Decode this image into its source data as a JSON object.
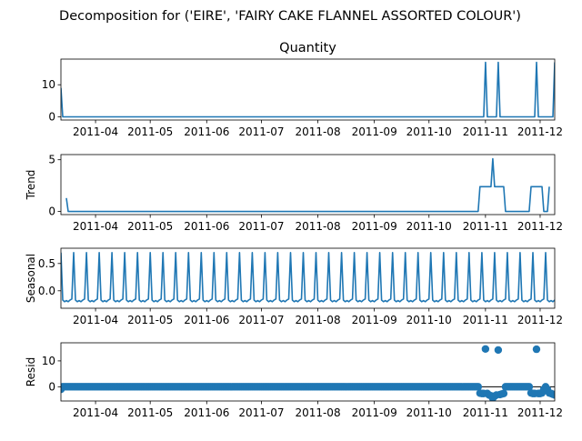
{
  "figure": {
    "suptitle": "Decomposition for ('EIRE', 'FAIRY CAKE FLANNEL ASSORTED COLOUR')"
  },
  "x_tick_labels": [
    "2011-04",
    "2011-05",
    "2011-06",
    "2011-07",
    "2011-08",
    "2011-09",
    "2011-10",
    "2011-11",
    "2011-12"
  ],
  "colors": {
    "series": "#1f77b4",
    "axis": "#000000",
    "zero_line": "#000000"
  },
  "chart_data": [
    {
      "type": "line",
      "title": "Quantity",
      "ylabel": "",
      "x_range": [
        "2011-03-13",
        "2011-12-09"
      ],
      "ylim": [
        -1,
        18
      ],
      "yticks": [
        0,
        10
      ],
      "ytick_labels": [
        "0",
        "10"
      ],
      "baseline": 0,
      "points": [
        [
          "2011-03-13",
          9
        ],
        [
          "2011-03-14",
          0
        ],
        [
          "2011-10-31",
          0
        ],
        [
          "2011-11-01",
          17
        ],
        [
          "2011-11-02",
          0
        ],
        [
          "2011-11-07",
          0
        ],
        [
          "2011-11-08",
          17
        ],
        [
          "2011-11-09",
          0
        ],
        [
          "2011-11-28",
          0
        ],
        [
          "2011-11-29",
          17
        ],
        [
          "2011-11-30",
          0
        ],
        [
          "2011-12-08",
          0
        ],
        [
          "2011-12-09",
          17
        ]
      ]
    },
    {
      "type": "line",
      "title": "",
      "ylabel": "Trend",
      "x_range": [
        "2011-03-13",
        "2011-12-09"
      ],
      "ylim": [
        -0.3,
        5.5
      ],
      "yticks": [
        0,
        5
      ],
      "ytick_labels": [
        "0",
        "5"
      ],
      "points": [
        [
          "2011-03-16",
          1.3
        ],
        [
          "2011-03-17",
          0
        ],
        [
          "2011-10-28",
          0
        ],
        [
          "2011-10-29",
          2.4
        ],
        [
          "2011-11-04",
          2.4
        ],
        [
          "2011-11-05",
          5.1
        ],
        [
          "2011-11-06",
          2.4
        ],
        [
          "2011-11-11",
          2.4
        ],
        [
          "2011-11-12",
          0
        ],
        [
          "2011-11-25",
          0
        ],
        [
          "2011-11-26",
          2.4
        ],
        [
          "2011-12-02",
          2.4
        ],
        [
          "2011-12-03",
          0
        ],
        [
          "2011-12-05",
          0
        ],
        [
          "2011-12-06",
          2.4
        ]
      ]
    },
    {
      "type": "line",
      "title": "",
      "ylabel": "Seasonal",
      "x_range": [
        "2011-03-13",
        "2011-12-09"
      ],
      "ylim": [
        -0.32,
        0.78
      ],
      "yticks": [
        0.0,
        0.5
      ],
      "ytick_labels": [
        "0.0",
        "0.5"
      ],
      "period_days": 7,
      "first_day": "2011-03-13",
      "weekly_pattern": [
        0.7,
        -0.17,
        -0.2,
        -0.18,
        -0.2,
        -0.17,
        -0.15
      ]
    },
    {
      "type": "scatter",
      "title": "",
      "ylabel": "Resid",
      "x_range": [
        "2011-03-13",
        "2011-12-09"
      ],
      "ylim": [
        -5.5,
        17
      ],
      "yticks": [
        0,
        10
      ],
      "ytick_labels": [
        "0",
        "10"
      ],
      "zero_line": true,
      "default_value": 0,
      "points": [
        [
          "2011-03-13",
          -1
        ],
        [
          "2011-10-29",
          -2.5
        ],
        [
          "2011-10-30",
          -2.6
        ],
        [
          "2011-10-31",
          -2.6
        ],
        [
          "2011-11-01",
          14.6
        ],
        [
          "2011-11-02",
          -2.6
        ],
        [
          "2011-11-03",
          -3.2
        ],
        [
          "2011-11-04",
          -3.5
        ],
        [
          "2011-11-05",
          -4.5
        ],
        [
          "2011-11-06",
          -3.6
        ],
        [
          "2011-11-07",
          -3.2
        ],
        [
          "2011-11-08",
          14.2
        ],
        [
          "2011-11-09",
          -3.0
        ],
        [
          "2011-11-10",
          -2.8
        ],
        [
          "2011-11-11",
          -2.6
        ],
        [
          "2011-11-26",
          -2.4
        ],
        [
          "2011-11-27",
          -2.6
        ],
        [
          "2011-11-28",
          -2.6
        ],
        [
          "2011-11-29",
          14.5
        ],
        [
          "2011-11-30",
          -2.6
        ],
        [
          "2011-12-01",
          -2.6
        ],
        [
          "2011-12-02",
          -2.4
        ],
        [
          "2011-12-03",
          -1
        ],
        [
          "2011-12-05",
          -1
        ],
        [
          "2011-12-06",
          -2.4
        ],
        [
          "2011-12-07",
          -2.6
        ],
        [
          "2011-12-08",
          -2.9
        ],
        [
          "2011-12-09",
          -3.2
        ]
      ]
    }
  ]
}
